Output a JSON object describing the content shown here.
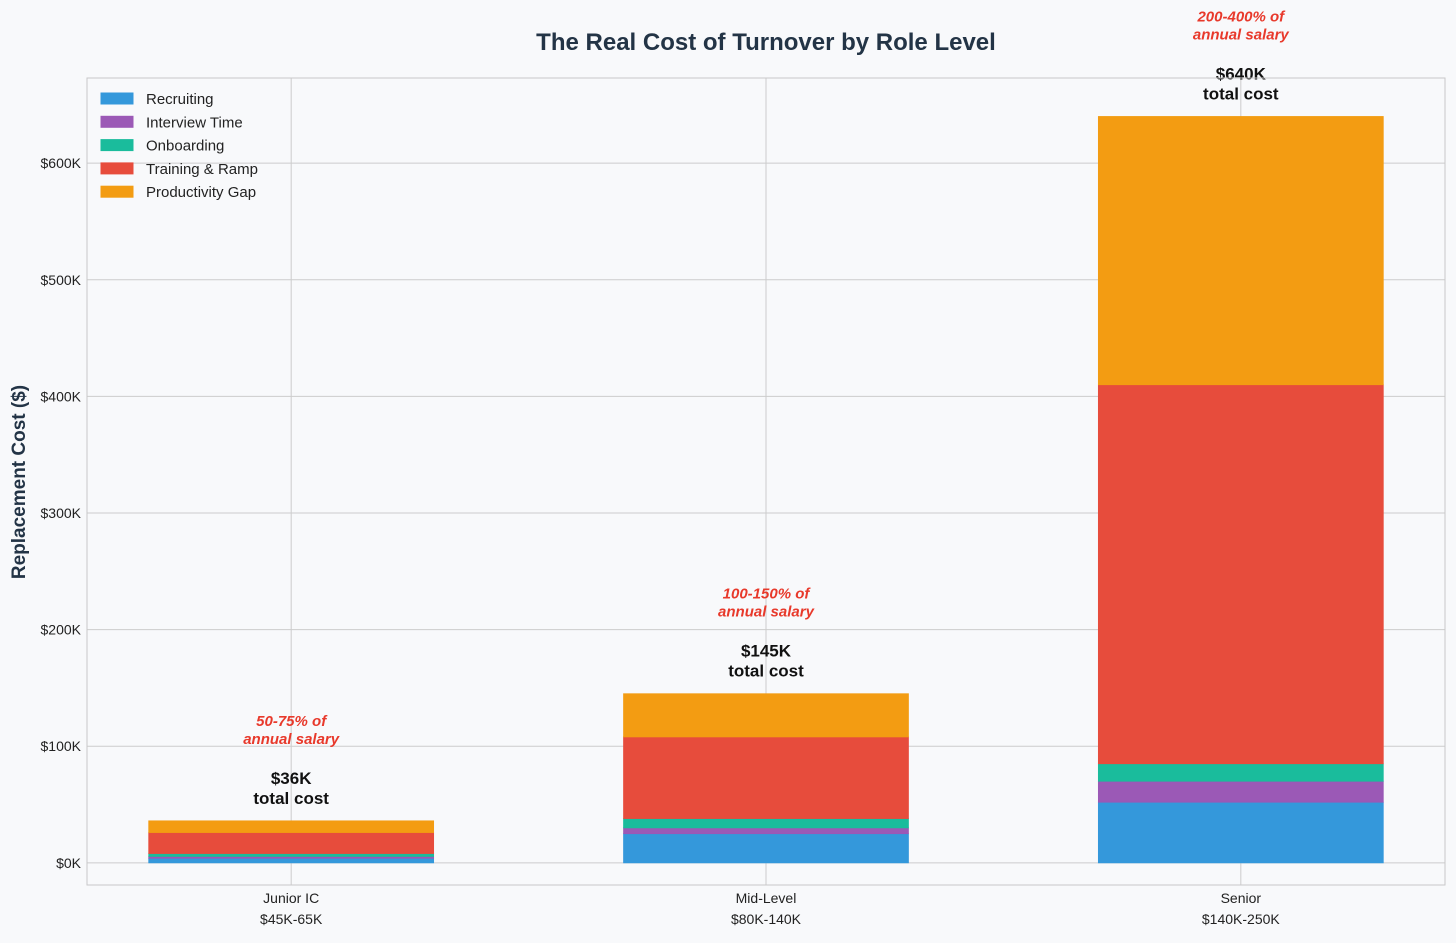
{
  "chart_data": {
    "type": "bar",
    "stacked": true,
    "title": "The Real Cost of Turnover by Role Level",
    "xlabel": "",
    "ylabel": "Replacement Cost ($)",
    "ylim": [
      -19,
      673
    ],
    "yticks": [
      0,
      100,
      200,
      300,
      400,
      500,
      600
    ],
    "ytick_labels": [
      "$0K",
      "$100K",
      "$200K",
      "$300K",
      "$400K",
      "$500K",
      "$600K"
    ],
    "grid": true,
    "legend_position": "top-left",
    "categories": [
      "Junior IC",
      "Mid-Level",
      "Senior"
    ],
    "category_sublabels": [
      "$45K-65K",
      "$80K-140K",
      "$140K-250K"
    ],
    "series": [
      {
        "name": "Recruiting",
        "color": "#3498db",
        "values": [
          4,
          25,
          52
        ]
      },
      {
        "name": "Interview Time",
        "color": "#9b59b6",
        "values": [
          1.5,
          5,
          18
        ]
      },
      {
        "name": "Onboarding",
        "color": "#1abc9c",
        "values": [
          2.5,
          8,
          15
        ]
      },
      {
        "name": "Training & Ramp",
        "color": "#e74c3c",
        "values": [
          18,
          70,
          325
        ]
      },
      {
        "name": "Productivity Gap",
        "color": "#f39c12",
        "values": [
          10,
          37,
          230
        ]
      }
    ],
    "totals": [
      36,
      145,
      640
    ],
    "total_labels": [
      [
        "$36K",
        "total cost"
      ],
      [
        "$145K",
        "total cost"
      ],
      [
        "$640K",
        "total cost"
      ]
    ],
    "annotations": [
      [
        "50-75% of",
        "annual salary"
      ],
      [
        "100-150% of",
        "annual salary"
      ],
      [
        "200-400% of",
        "annual salary"
      ]
    ],
    "annotation_color": "#e8392b"
  }
}
